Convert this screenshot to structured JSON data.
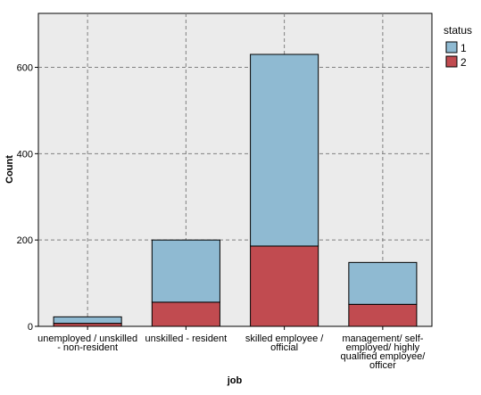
{
  "chart_data": {
    "type": "bar",
    "stacked": true,
    "categories": [
      [
        "unemployed / unskilled",
        "- non-resident"
      ],
      [
        "unskilled - resident"
      ],
      [
        "skilled employee /",
        "official"
      ],
      [
        "management/ self-",
        "employed/ highly",
        "qualified employee/",
        "officer"
      ]
    ],
    "series": [
      {
        "name": "2",
        "values": [
          7,
          56,
          186,
          51
        ],
        "color": "#c14b50"
      },
      {
        "name": "1",
        "values": [
          15,
          144,
          444,
          97
        ],
        "color": "#8fbad2"
      }
    ],
    "xlabel": "job",
    "ylabel": "Count",
    "ylim": [
      0,
      725
    ],
    "yticks": [
      0,
      200,
      400,
      600
    ],
    "grid": true,
    "legend": {
      "title": "status",
      "position": "right",
      "entries": [
        "1",
        "2"
      ]
    },
    "colors": {
      "plot_background": "#ebebeb",
      "grid": "#808080"
    }
  }
}
